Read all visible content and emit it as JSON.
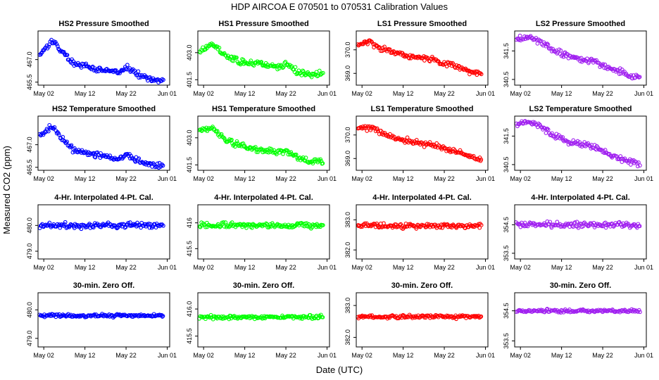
{
  "page_title": "HDP   AIRCOA E   070501 to 070531   Calibration Values",
  "xlabel": "Date (UTC)",
  "ylabel": "Measured CO2 (ppm)",
  "x_tick_labels": [
    "May 02",
    "May 12",
    "May 22",
    "Jun 01"
  ],
  "chart_data": {
    "type": "scatter",
    "x_range": [
      "2007-05-01",
      "2007-05-31"
    ],
    "x_ticks_day_of_may": [
      2,
      12,
      22,
      32
    ],
    "panels": [
      {
        "row": 0,
        "col": 0,
        "title": "HS2 Pressure Smoothed",
        "color": "#0000ff",
        "ylim": [
          465.3,
          468.9
        ],
        "yticks": [
          465.5,
          467.0
        ],
        "ytick_labels": [
          "465.5",
          "467.0"
        ],
        "trend": [
          [
            1,
            467.3
          ],
          [
            4,
            468.3
          ],
          [
            5,
            468.0
          ],
          [
            9,
            466.8
          ],
          [
            14,
            466.4
          ],
          [
            19,
            466.2
          ],
          [
            20,
            466.1
          ],
          [
            22,
            466.5
          ],
          [
            25,
            466.0
          ],
          [
            28,
            465.7
          ],
          [
            31,
            465.6
          ]
        ],
        "noise": 0.17
      },
      {
        "row": 0,
        "col": 1,
        "title": "HS1 Pressure Smoothed",
        "color": "#00ff00",
        "ylim": [
          401.2,
          404.2
        ],
        "yticks": [
          401.5,
          403.0
        ],
        "ytick_labels": [
          "401.5",
          "403.0"
        ],
        "trend": [
          [
            1,
            403.1
          ],
          [
            4,
            403.5
          ],
          [
            5,
            403.3
          ],
          [
            9,
            402.6
          ],
          [
            14,
            402.4
          ],
          [
            20,
            402.2
          ],
          [
            22,
            402.4
          ],
          [
            25,
            401.9
          ],
          [
            28,
            401.8
          ],
          [
            31,
            401.8
          ]
        ],
        "noise": 0.15
      },
      {
        "row": 0,
        "col": 2,
        "title": "LS1 Pressure Smoothed",
        "color": "#ff0000",
        "ylim": [
          368.5,
          370.8
        ],
        "yticks": [
          369.0,
          370.0
        ],
        "ytick_labels": [
          "369.0",
          "370.0"
        ],
        "trend": [
          [
            1,
            370.2
          ],
          [
            4,
            370.4
          ],
          [
            5,
            370.2
          ],
          [
            9,
            369.9
          ],
          [
            14,
            369.7
          ],
          [
            19,
            369.6
          ],
          [
            22,
            369.4
          ],
          [
            25,
            369.3
          ],
          [
            28,
            369.1
          ],
          [
            31,
            369.0
          ]
        ],
        "noise": 0.1
      },
      {
        "row": 0,
        "col": 3,
        "title": "LS2 Pressure Smoothed",
        "color": "#a020f0",
        "ylim": [
          340.3,
          342.2
        ],
        "yticks": [
          340.5,
          341.5
        ],
        "ytick_labels": [
          "340.5",
          "341.5"
        ],
        "trend": [
          [
            1,
            341.9
          ],
          [
            4,
            342.0
          ],
          [
            6,
            341.9
          ],
          [
            10,
            341.5
          ],
          [
            14,
            341.3
          ],
          [
            18,
            341.2
          ],
          [
            22,
            341.0
          ],
          [
            26,
            340.8
          ],
          [
            29,
            340.6
          ],
          [
            31,
            340.6
          ]
        ],
        "noise": 0.09
      },
      {
        "row": 1,
        "col": 0,
        "title": "HS2 Temperature Smoothed",
        "color": "#0000ff",
        "ylim": [
          465.3,
          468.9
        ],
        "yticks": [
          465.5,
          467.0
        ],
        "ytick_labels": [
          "465.5",
          "467.0"
        ],
        "trend": [
          [
            1,
            467.6
          ],
          [
            4,
            468.2
          ],
          [
            5,
            467.9
          ],
          [
            9,
            466.7
          ],
          [
            14,
            466.4
          ],
          [
            19,
            466.1
          ],
          [
            20,
            466.0
          ],
          [
            22,
            466.4
          ],
          [
            25,
            465.9
          ],
          [
            28,
            465.7
          ],
          [
            31,
            465.6
          ]
        ],
        "noise": 0.17
      },
      {
        "row": 1,
        "col": 1,
        "title": "HS1 Temperature Smoothed",
        "color": "#00ff00",
        "ylim": [
          401.2,
          404.2
        ],
        "yticks": [
          401.5,
          403.0
        ],
        "ytick_labels": [
          "401.5",
          "403.0"
        ],
        "trend": [
          [
            1,
            403.4
          ],
          [
            4,
            403.5
          ],
          [
            5,
            403.3
          ],
          [
            9,
            402.7
          ],
          [
            14,
            402.4
          ],
          [
            20,
            402.2
          ],
          [
            22,
            402.3
          ],
          [
            25,
            401.9
          ],
          [
            28,
            401.7
          ],
          [
            31,
            401.7
          ]
        ],
        "noise": 0.15
      },
      {
        "row": 1,
        "col": 2,
        "title": "LS1 Temperature Smoothed",
        "color": "#ff0000",
        "ylim": [
          368.5,
          370.8
        ],
        "yticks": [
          369.0,
          370.0
        ],
        "ytick_labels": [
          "369.0",
          "370.0"
        ],
        "trend": [
          [
            1,
            370.3
          ],
          [
            4,
            370.3
          ],
          [
            6,
            370.2
          ],
          [
            9,
            369.9
          ],
          [
            14,
            369.7
          ],
          [
            19,
            369.6
          ],
          [
            22,
            369.4
          ],
          [
            25,
            369.3
          ],
          [
            28,
            369.1
          ],
          [
            31,
            368.9
          ]
        ],
        "noise": 0.1
      },
      {
        "row": 1,
        "col": 3,
        "title": "LS2 Temperature Smoothed",
        "color": "#a020f0",
        "ylim": [
          340.3,
          342.2
        ],
        "yticks": [
          340.5,
          341.5
        ],
        "ytick_labels": [
          "340.5",
          "341.5"
        ],
        "trend": [
          [
            1,
            341.9
          ],
          [
            4,
            342.0
          ],
          [
            6,
            341.9
          ],
          [
            10,
            341.5
          ],
          [
            14,
            341.3
          ],
          [
            18,
            341.2
          ],
          [
            22,
            341.0
          ],
          [
            26,
            340.7
          ],
          [
            29,
            340.6
          ],
          [
            31,
            340.5
          ]
        ],
        "noise": 0.09
      },
      {
        "row": 2,
        "col": 0,
        "title": "4-Hr. Interpolated 4-Pt. Cal.",
        "color": "#0000ff",
        "ylim": [
          478.7,
          480.8
        ],
        "yticks": [
          479.0,
          480.0
        ],
        "ytick_labels": [
          "479.0",
          "480.0"
        ],
        "trend": [
          [
            1,
            480.0
          ],
          [
            31,
            480.0
          ]
        ],
        "noise": 0.1
      },
      {
        "row": 2,
        "col": 1,
        "title": "4-Hr. Interpolated 4-Pt. Cal.",
        "color": "#00ff00",
        "ylim": [
          415.3,
          416.35
        ],
        "yticks": [
          415.5,
          416.0
        ],
        "ytick_labels": [
          "415.5",
          "416"
        ],
        "trend": [
          [
            1,
            415.95
          ],
          [
            31,
            415.95
          ]
        ],
        "noise": 0.05
      },
      {
        "row": 2,
        "col": 2,
        "title": "4-Hr. Interpolated 4-Pt. Cal.",
        "color": "#ff0000",
        "ylim": [
          381.7,
          383.5
        ],
        "yticks": [
          382.0,
          383.0
        ],
        "ytick_labels": [
          "382.0",
          "383.0"
        ],
        "trend": [
          [
            1,
            382.8
          ],
          [
            31,
            382.8
          ]
        ],
        "noise": 0.08
      },
      {
        "row": 2,
        "col": 3,
        "title": "4-Hr. Interpolated 4-Pt. Cal.",
        "color": "#a020f0",
        "ylim": [
          353.3,
          355.2
        ],
        "yticks": [
          353.5,
          354.5
        ],
        "ytick_labels": [
          "353.5",
          "354.5"
        ],
        "trend": [
          [
            1,
            354.5
          ],
          [
            31,
            354.5
          ]
        ],
        "noise": 0.09
      },
      {
        "row": 3,
        "col": 0,
        "title": "30-min. Zero Off.",
        "color": "#0000ff",
        "ylim": [
          478.7,
          480.6
        ],
        "yticks": [
          479.0,
          480.0
        ],
        "ytick_labels": [
          "479.0",
          "480.0"
        ],
        "trend": [
          [
            1,
            479.8
          ],
          [
            31,
            479.8
          ]
        ],
        "noise": 0.05
      },
      {
        "row": 3,
        "col": 1,
        "title": "30-min. Zero Off.",
        "color": "#00ff00",
        "ylim": [
          415.3,
          416.3
        ],
        "yticks": [
          415.5,
          416.0
        ],
        "ytick_labels": [
          "415.5",
          "416.0"
        ],
        "trend": [
          [
            1,
            415.85
          ],
          [
            31,
            415.85
          ]
        ],
        "noise": 0.03
      },
      {
        "row": 3,
        "col": 2,
        "title": "30-min. Zero Off.",
        "color": "#ff0000",
        "ylim": [
          381.7,
          383.4
        ],
        "yticks": [
          382.0,
          383.0
        ],
        "ytick_labels": [
          "382.0",
          "383.0"
        ],
        "trend": [
          [
            1,
            382.65
          ],
          [
            31,
            382.65
          ]
        ],
        "noise": 0.05
      },
      {
        "row": 3,
        "col": 3,
        "title": "30-min. Zero Off.",
        "color": "#a020f0",
        "ylim": [
          353.3,
          355.1
        ],
        "yticks": [
          353.5,
          354.5
        ],
        "ytick_labels": [
          "353.5",
          "354.5"
        ],
        "trend": [
          [
            1,
            354.5
          ],
          [
            31,
            354.5
          ]
        ],
        "noise": 0.05
      }
    ]
  }
}
